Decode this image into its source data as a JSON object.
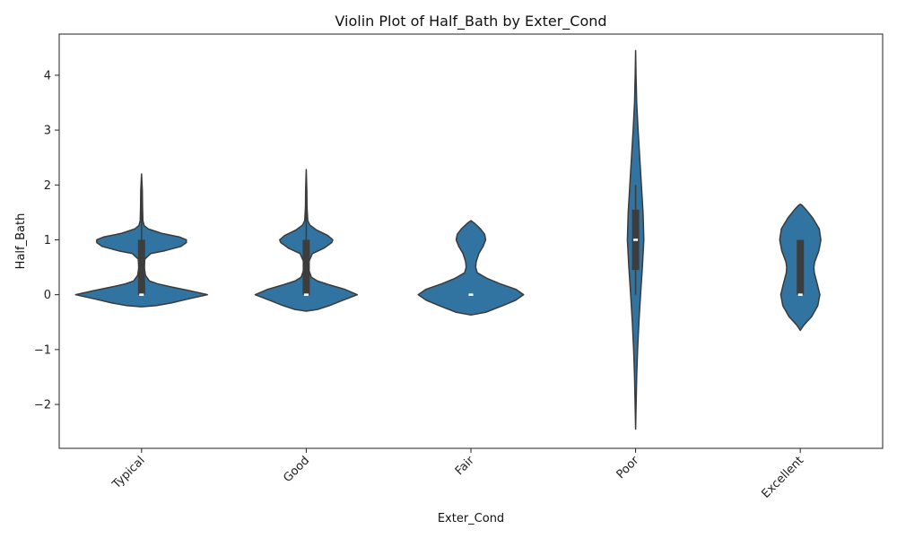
{
  "chart_data": {
    "type": "violin",
    "title": "Violin Plot of Half_Bath by Exter_Cond",
    "xlabel": "Exter_Cond",
    "ylabel": "Half_Bath",
    "ylim": [
      -2.8,
      4.75
    ],
    "yticks": [
      -2,
      -1,
      0,
      1,
      2,
      3,
      4
    ],
    "ytick_labels": [
      "−2",
      "−1",
      "0",
      "1",
      "2",
      "3",
      "4"
    ],
    "categories": [
      "Typical",
      "Good",
      "Fair",
      "Poor",
      "Excellent"
    ],
    "grid": false,
    "colors": {
      "fill": "#3274a1",
      "edge": "#3a3a3a",
      "box": "#3d3d3d",
      "median": "#ffffff"
    },
    "violins": [
      {
        "category": "Typical",
        "density_profile": [
          [
            -0.22,
            0.0
          ],
          [
            -0.2,
            0.22
          ],
          [
            -0.15,
            0.45
          ],
          [
            -0.08,
            0.7
          ],
          [
            0.0,
            1.0
          ],
          [
            0.08,
            0.7
          ],
          [
            0.15,
            0.42
          ],
          [
            0.2,
            0.24
          ],
          [
            0.25,
            0.12
          ],
          [
            0.35,
            0.06
          ],
          [
            0.5,
            0.04
          ],
          [
            0.65,
            0.05
          ],
          [
            0.75,
            0.14
          ],
          [
            0.8,
            0.35
          ],
          [
            0.88,
            0.6
          ],
          [
            0.95,
            0.68
          ],
          [
            1.0,
            0.68
          ],
          [
            1.05,
            0.58
          ],
          [
            1.12,
            0.3
          ],
          [
            1.2,
            0.1
          ],
          [
            1.26,
            0.04
          ],
          [
            1.35,
            0.02
          ],
          [
            1.6,
            0.015
          ],
          [
            1.9,
            0.012
          ],
          [
            2.2,
            0.0
          ]
        ],
        "max_halfwidth": 0.4,
        "whisker": [
          0,
          2
        ],
        "box": [
          0,
          1
        ],
        "median": 0
      },
      {
        "category": "Good",
        "density_profile": [
          [
            -0.3,
            0.0
          ],
          [
            -0.27,
            0.22
          ],
          [
            -0.2,
            0.45
          ],
          [
            -0.1,
            0.72
          ],
          [
            0.0,
            1.0
          ],
          [
            0.1,
            0.75
          ],
          [
            0.18,
            0.45
          ],
          [
            0.25,
            0.22
          ],
          [
            0.32,
            0.1
          ],
          [
            0.45,
            0.05
          ],
          [
            0.6,
            0.05
          ],
          [
            0.75,
            0.12
          ],
          [
            0.85,
            0.35
          ],
          [
            0.95,
            0.5
          ],
          [
            1.0,
            0.52
          ],
          [
            1.08,
            0.42
          ],
          [
            1.18,
            0.2
          ],
          [
            1.27,
            0.07
          ],
          [
            1.35,
            0.03
          ],
          [
            1.6,
            0.015
          ],
          [
            1.9,
            0.012
          ],
          [
            2.28,
            0.0
          ]
        ],
        "max_halfwidth": 0.31,
        "whisker": [
          0,
          2
        ],
        "box": [
          0,
          1
        ],
        "median": 0
      },
      {
        "category": "Fair",
        "density_profile": [
          [
            -0.37,
            0.0
          ],
          [
            -0.32,
            0.28
          ],
          [
            -0.2,
            0.6
          ],
          [
            -0.1,
            0.85
          ],
          [
            0.0,
            1.0
          ],
          [
            0.1,
            0.85
          ],
          [
            0.2,
            0.55
          ],
          [
            0.3,
            0.3
          ],
          [
            0.4,
            0.12
          ],
          [
            0.5,
            0.09
          ],
          [
            0.6,
            0.1
          ],
          [
            0.75,
            0.15
          ],
          [
            0.88,
            0.23
          ],
          [
            1.0,
            0.28
          ],
          [
            1.1,
            0.26
          ],
          [
            1.2,
            0.18
          ],
          [
            1.3,
            0.07
          ],
          [
            1.35,
            0.0
          ]
        ],
        "max_halfwidth": 0.32,
        "whisker": [
          0,
          0
        ],
        "box": [
          0,
          0
        ],
        "median": 0
      },
      {
        "category": "Poor",
        "density_profile": [
          [
            -2.45,
            0.0
          ],
          [
            -2.0,
            0.06
          ],
          [
            -1.5,
            0.13
          ],
          [
            -1.0,
            0.24
          ],
          [
            -0.5,
            0.4
          ],
          [
            0.0,
            0.6
          ],
          [
            0.5,
            0.82
          ],
          [
            1.0,
            1.0
          ],
          [
            1.5,
            0.9
          ],
          [
            2.0,
            0.7
          ],
          [
            2.5,
            0.5
          ],
          [
            3.0,
            0.3
          ],
          [
            3.5,
            0.13
          ],
          [
            4.0,
            0.05
          ],
          [
            4.45,
            0.0
          ]
        ],
        "max_halfwidth": 0.05,
        "whisker": [
          0,
          2
        ],
        "box": [
          0.45,
          1.55
        ],
        "median": 1
      },
      {
        "category": "Excellent",
        "density_profile": [
          [
            -0.65,
            0.0
          ],
          [
            -0.55,
            0.18
          ],
          [
            -0.4,
            0.55
          ],
          [
            -0.2,
            0.85
          ],
          [
            0.0,
            0.95
          ],
          [
            0.2,
            0.82
          ],
          [
            0.4,
            0.68
          ],
          [
            0.5,
            0.66
          ],
          [
            0.6,
            0.7
          ],
          [
            0.8,
            0.9
          ],
          [
            1.0,
            1.0
          ],
          [
            1.2,
            0.92
          ],
          [
            1.4,
            0.6
          ],
          [
            1.55,
            0.28
          ],
          [
            1.63,
            0.08
          ],
          [
            1.65,
            0.0
          ]
        ],
        "max_halfwidth": 0.125,
        "whisker": [
          0,
          1
        ],
        "box": [
          0,
          1
        ],
        "median": 0
      }
    ]
  }
}
